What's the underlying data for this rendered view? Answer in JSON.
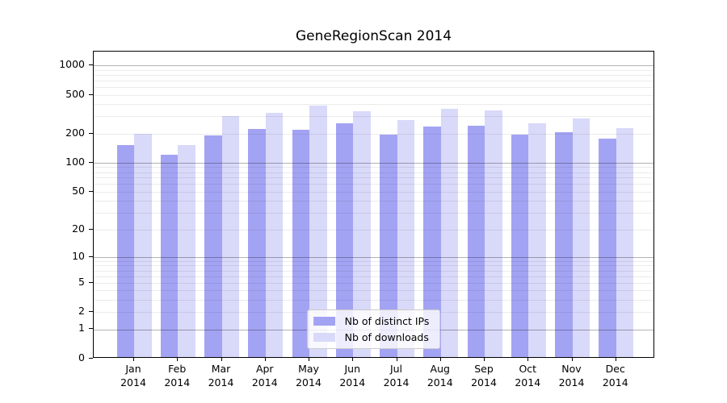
{
  "chart_data": {
    "type": "bar",
    "title": "GeneRegionScan 2014",
    "year": "2014",
    "categories": [
      "Jan",
      "Feb",
      "Mar",
      "Apr",
      "May",
      "Jun",
      "Jul",
      "Aug",
      "Sep",
      "Oct",
      "Nov",
      "Dec"
    ],
    "series": [
      {
        "name": "Nb of distinct IPs",
        "color": "#a3a3f3",
        "values": [
          145,
          116,
          184,
          216,
          210,
          245,
          188,
          226,
          231,
          186,
          198,
          170
        ]
      },
      {
        "name": "Nb of downloads",
        "color": "#d9d9f9",
        "values": [
          191,
          146,
          289,
          314,
          372,
          324,
          265,
          347,
          334,
          246,
          275,
          218
        ]
      }
    ],
    "y_ticks": [
      0,
      1,
      2,
      5,
      10,
      20,
      50,
      100,
      200,
      500,
      1000
    ],
    "y_scale": "log1p",
    "ylim": [
      0,
      1380
    ],
    "grid": true,
    "legend_position": "lower center"
  }
}
